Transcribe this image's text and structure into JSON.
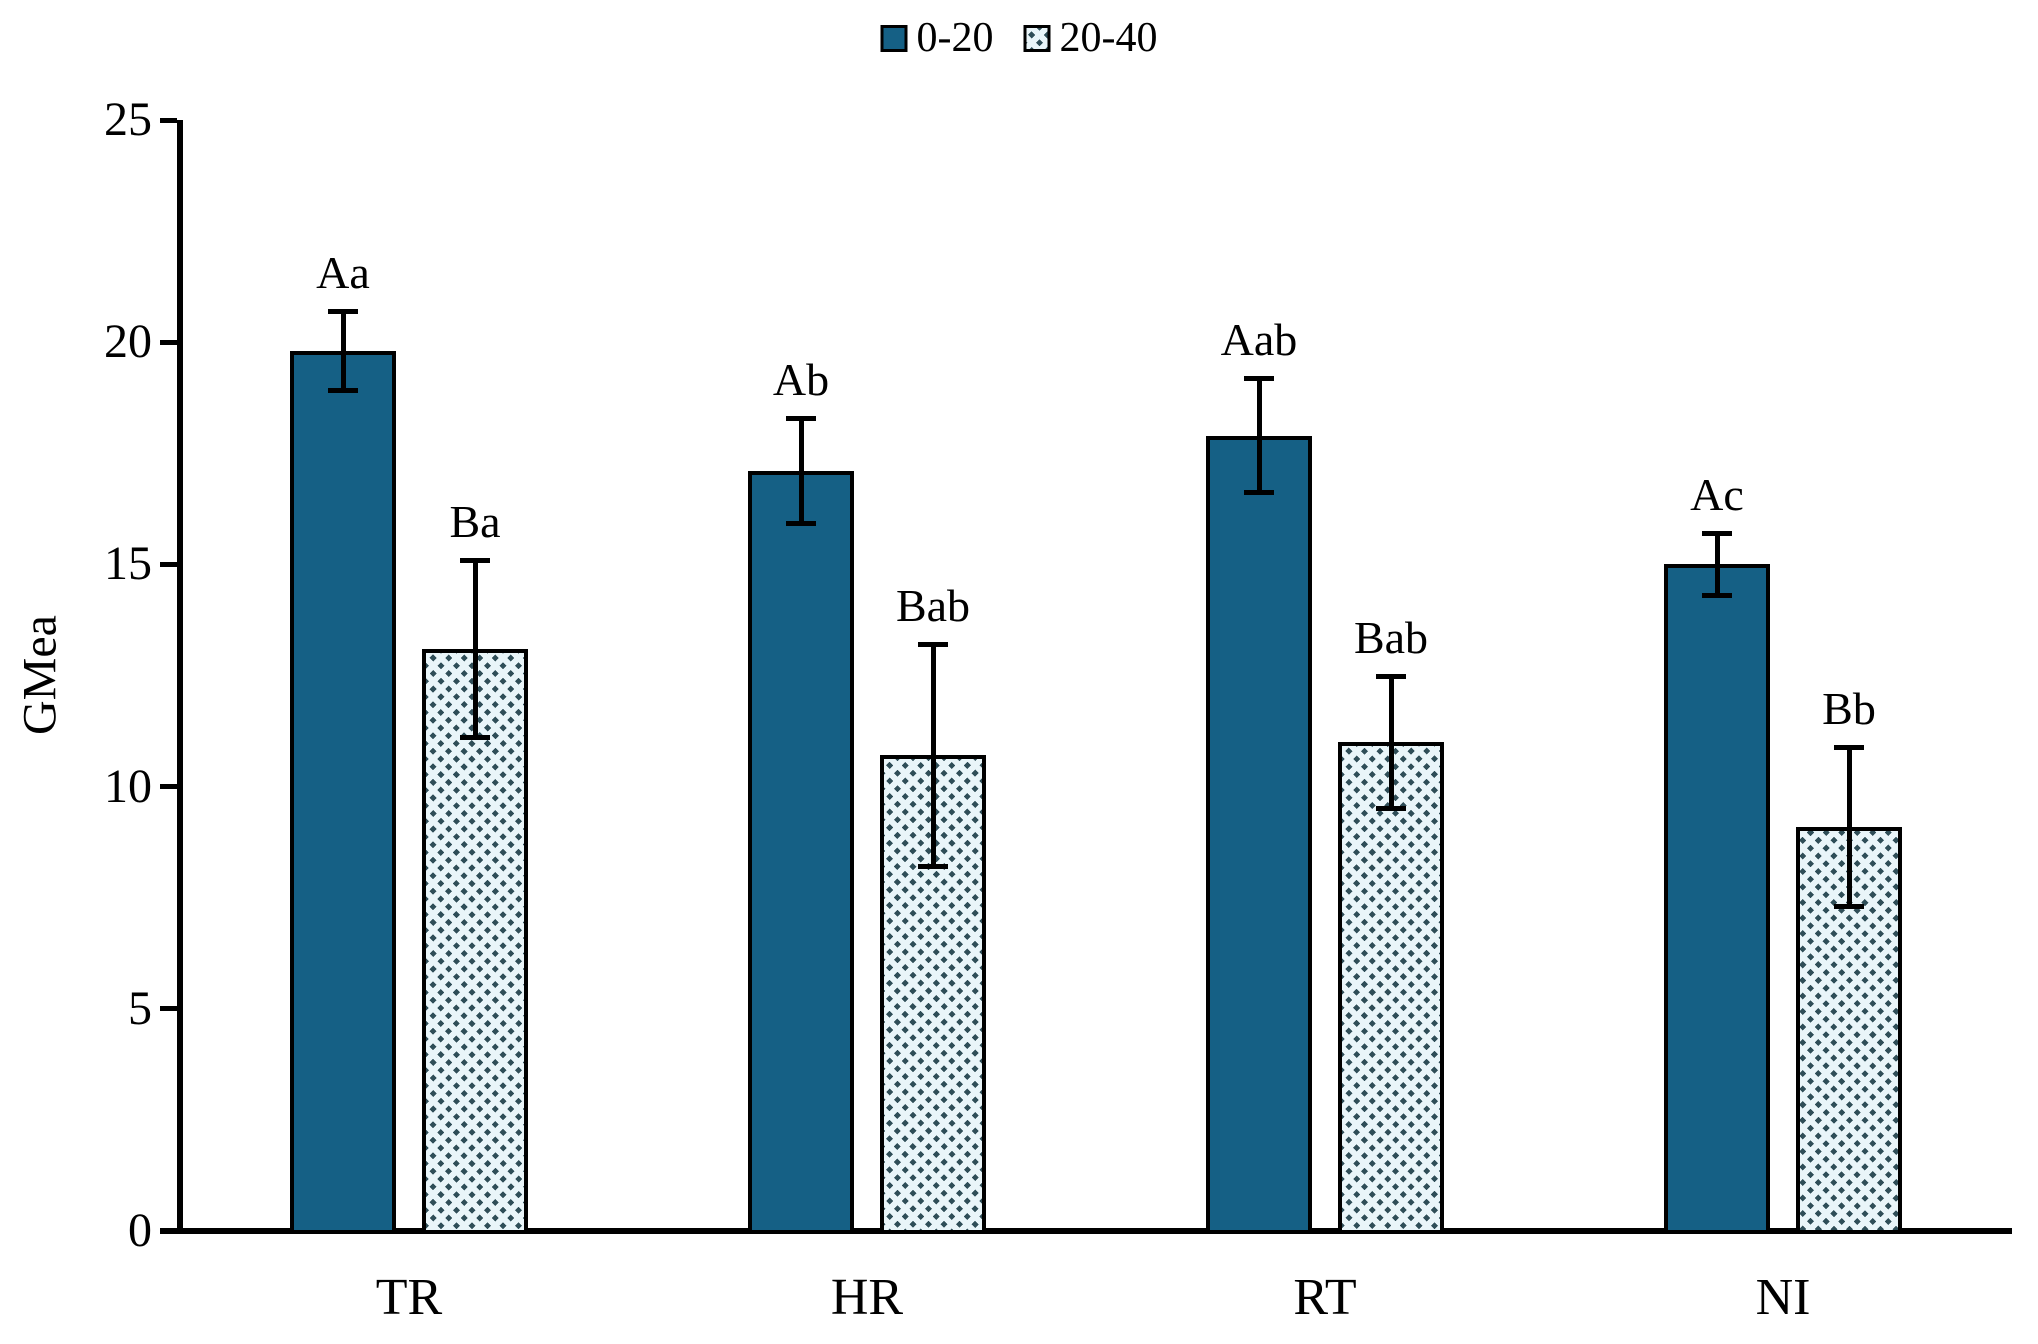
{
  "colors": {
    "series_0_20_fill": "#156085",
    "series_20_40_bg": "#e9f5f9",
    "series_20_40_hatch": "#2f4e58",
    "axis": "#000000",
    "background": "#ffffff"
  },
  "chart_data": {
    "type": "bar",
    "title": "",
    "xlabel": "",
    "ylabel": "GMea",
    "categories": [
      "TR",
      "HR",
      "RT",
      "NI"
    ],
    "ylim": [
      0,
      25
    ],
    "yticks": [
      0,
      5,
      10,
      15,
      20,
      25
    ],
    "grid": false,
    "legend_position": "top-center",
    "error_bars": true,
    "series": [
      {
        "name": "0-20",
        "style": "solid",
        "color": "#156085",
        "values": [
          19.8,
          17.1,
          17.9,
          15.0
        ],
        "errors": [
          0.9,
          1.2,
          1.3,
          0.7
        ],
        "point_labels": [
          "Aa",
          "Ab",
          "Aab",
          "Ac"
        ]
      },
      {
        "name": "20-40",
        "style": "hatched",
        "color": "#e9f5f9",
        "hatch_color": "#2f4e58",
        "values": [
          13.1,
          10.7,
          11.0,
          9.1
        ],
        "errors": [
          2.0,
          2.5,
          1.5,
          1.8
        ],
        "point_labels": [
          "Ba",
          "Bab",
          "Bab",
          "Bb"
        ]
      }
    ]
  }
}
